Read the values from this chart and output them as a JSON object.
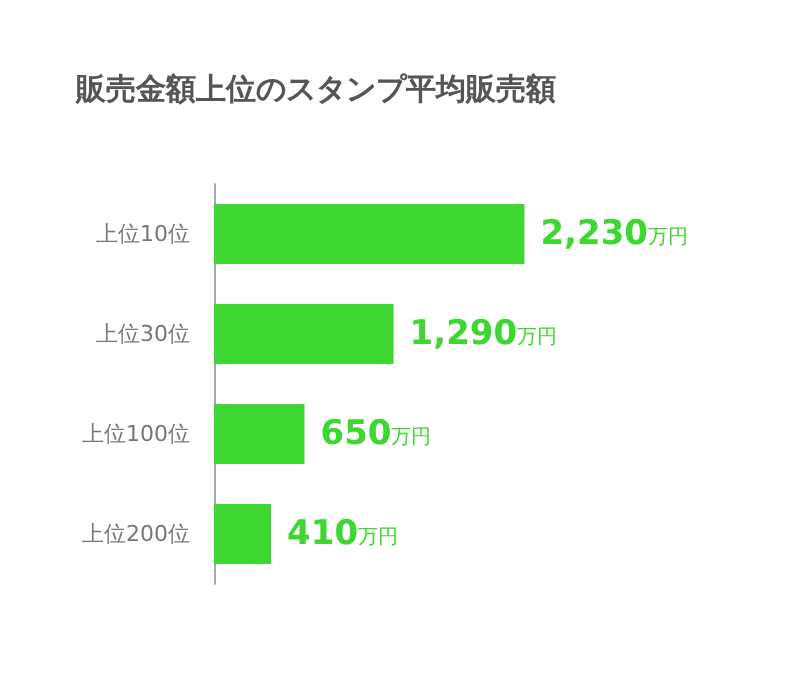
{
  "chart_data": {
    "type": "bar",
    "orientation": "horizontal",
    "title": "販売金額上位のスタンプ平均販売額",
    "categories": [
      "上位10位",
      "上位30位",
      "上位100位",
      "上位200位"
    ],
    "values": [
      2230,
      1290,
      650,
      410
    ],
    "value_labels": [
      "2,230万円",
      "1,290万円",
      "650万円",
      "410万円"
    ],
    "color": "#3ed631",
    "tick_labels": "y"
  }
}
